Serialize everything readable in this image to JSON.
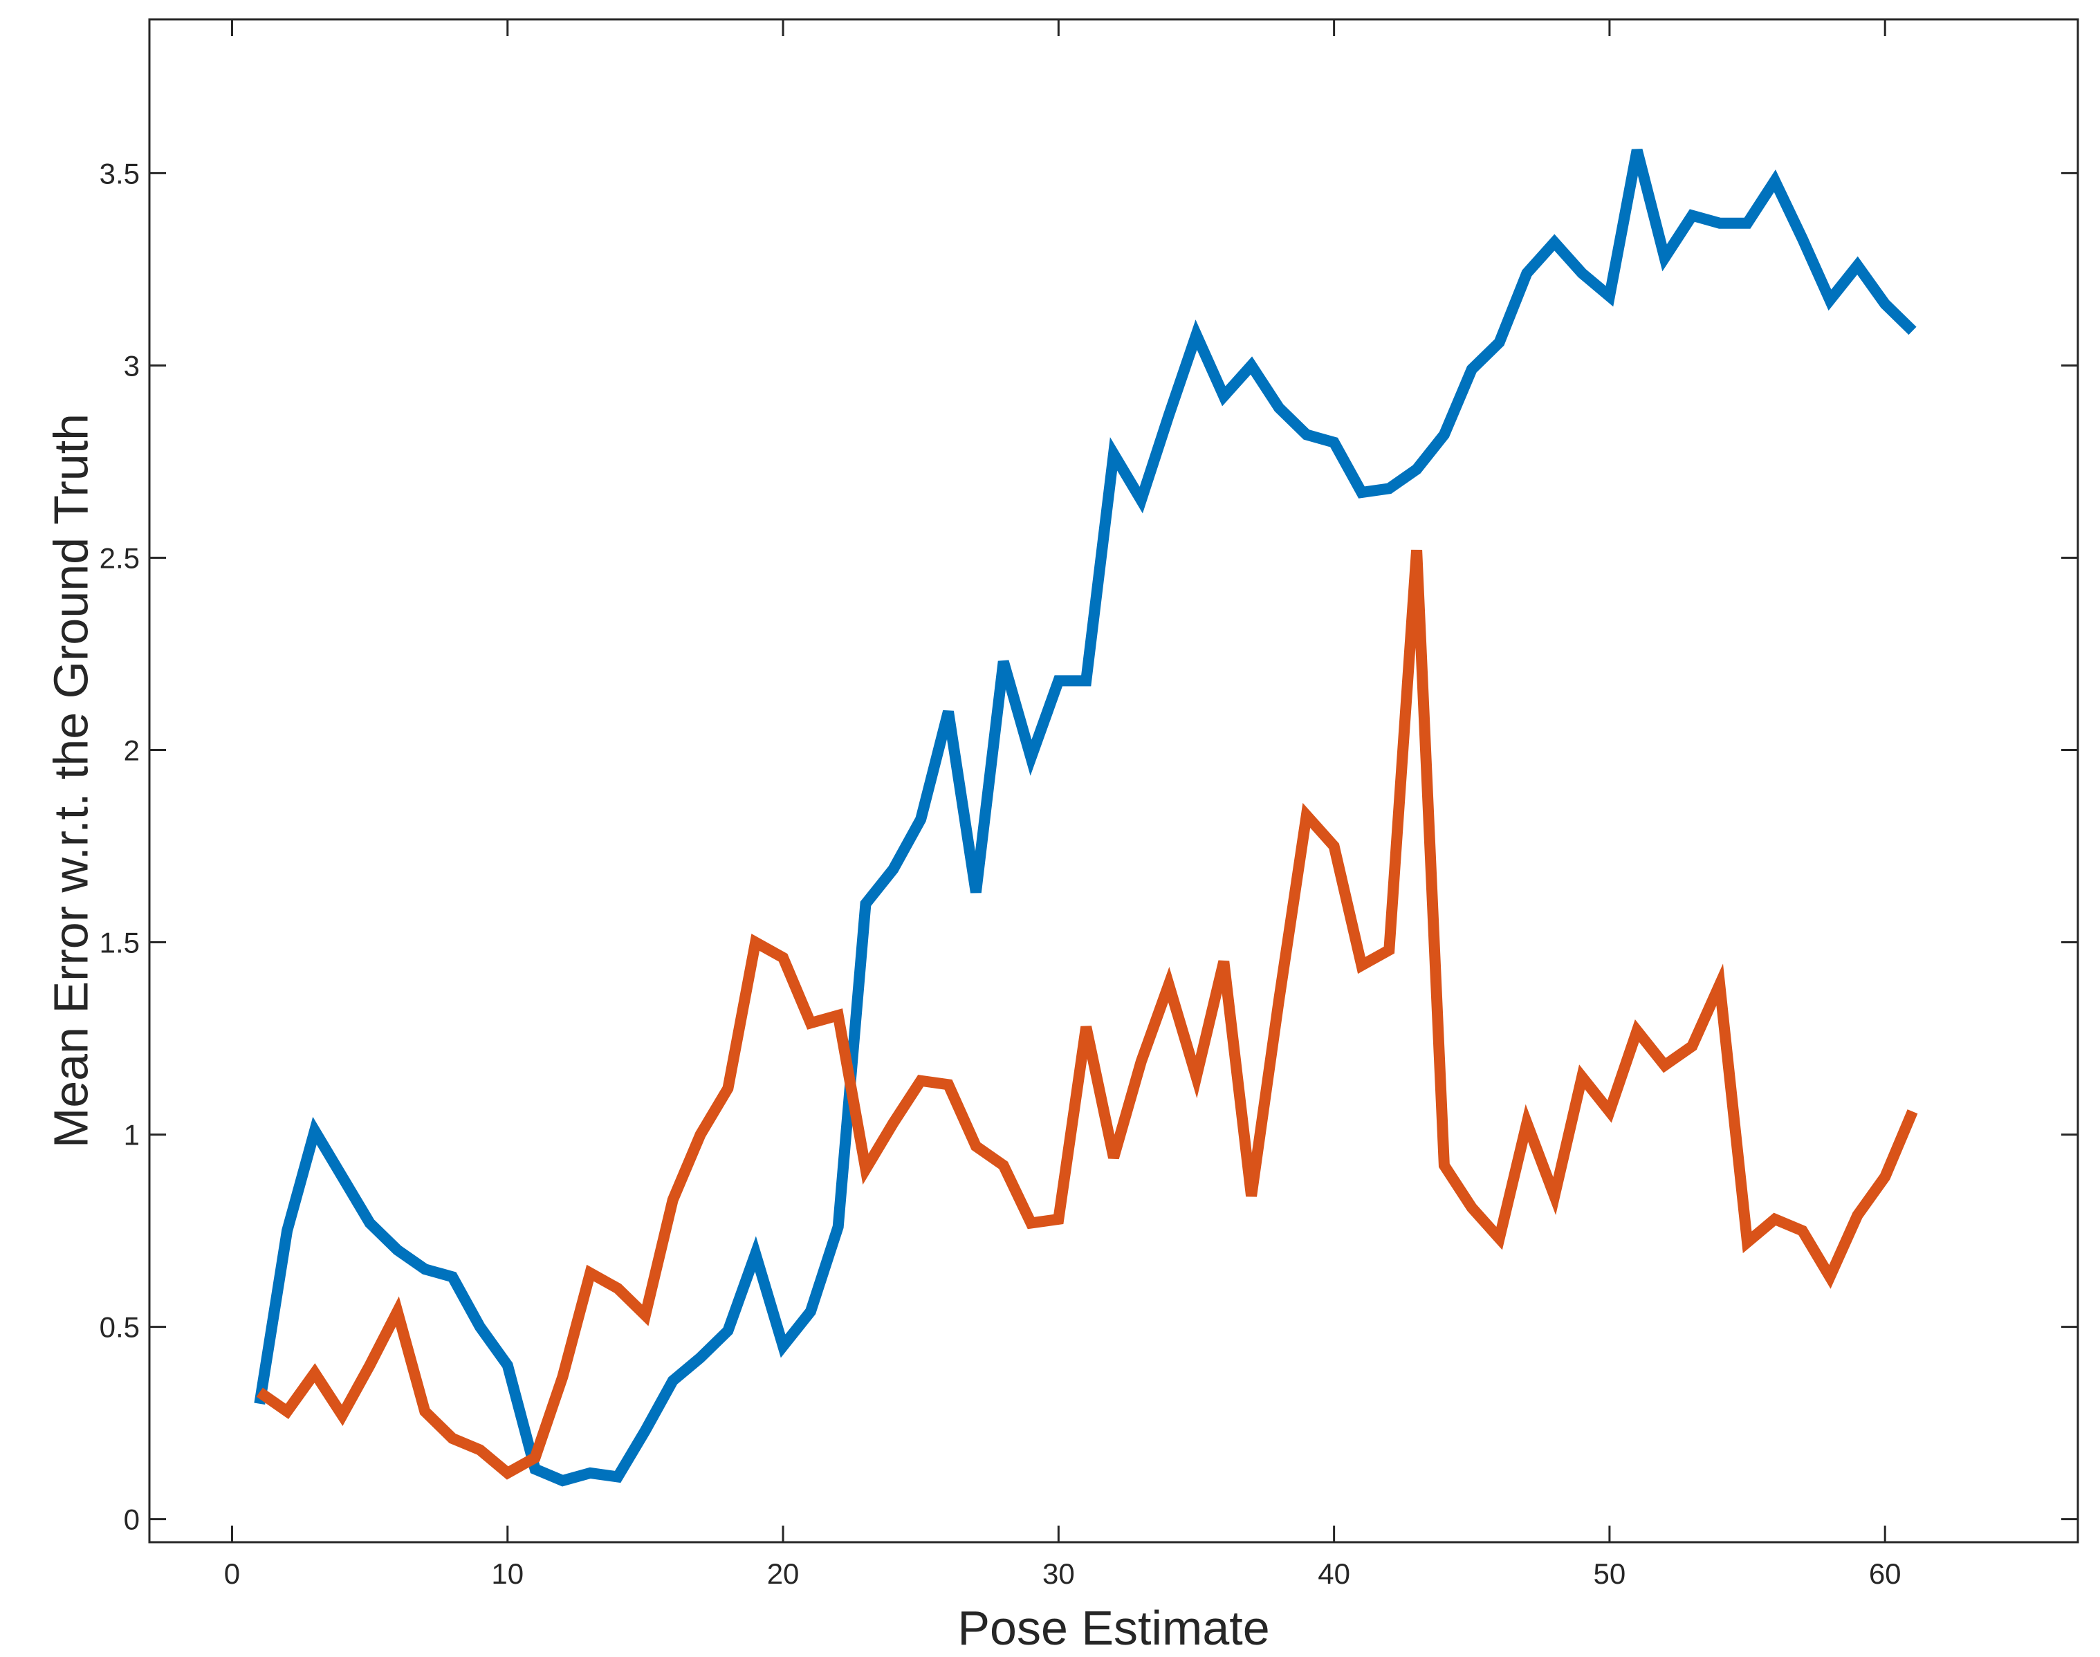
{
  "chart_data": {
    "type": "line",
    "title": "",
    "xlabel": "Pose Estimate",
    "ylabel": "Mean Error w.r.t. the Ground Truth",
    "xlim": [
      -3,
      67
    ],
    "ylim": [
      -0.06,
      3.9
    ],
    "xticks": [
      0,
      10,
      20,
      30,
      40,
      50,
      60
    ],
    "yticks": [
      0,
      0.5,
      1,
      1.5,
      2,
      2.5,
      3,
      3.5
    ],
    "xtick_labels": [
      "0",
      "10",
      "20",
      "30",
      "40",
      "50",
      "60"
    ],
    "ytick_labels": [
      "0",
      "0.5",
      "1",
      "1.5",
      "2",
      "2.5",
      "3",
      "3.5"
    ],
    "grid": false,
    "legend": "none",
    "x": [
      1,
      2,
      3,
      4,
      5,
      6,
      7,
      8,
      9,
      10,
      11,
      12,
      13,
      14,
      15,
      16,
      17,
      18,
      19,
      20,
      21,
      22,
      23,
      24,
      25,
      26,
      27,
      28,
      29,
      30,
      31,
      32,
      33,
      34,
      35,
      36,
      37,
      38,
      39,
      40,
      41,
      42,
      43,
      44,
      45,
      46,
      47,
      48,
      49,
      50,
      51,
      52,
      53,
      54,
      55,
      56,
      57,
      58,
      59,
      60,
      61
    ],
    "series": [
      {
        "color": "#0072BD",
        "values": [
          0.3,
          0.75,
          1.01,
          0.89,
          0.77,
          0.7,
          0.65,
          0.63,
          0.5,
          0.4,
          0.13,
          0.1,
          0.12,
          0.11,
          0.23,
          0.36,
          0.42,
          0.49,
          0.69,
          0.45,
          0.54,
          0.76,
          1.6,
          1.69,
          1.82,
          2.1,
          1.63,
          2.23,
          1.98,
          2.18,
          2.18,
          2.77,
          2.65,
          2.87,
          3.08,
          2.92,
          3.0,
          2.89,
          2.82,
          2.8,
          2.67,
          2.68,
          2.73,
          2.82,
          2.99,
          3.06,
          3.24,
          3.32,
          3.24,
          3.18,
          3.56,
          3.28,
          3.39,
          3.37,
          3.37,
          3.48,
          3.33,
          3.17,
          3.26,
          3.16,
          3.09
        ]
      },
      {
        "color": "#D95319",
        "values": [
          0.33,
          0.28,
          0.38,
          0.27,
          0.4,
          0.54,
          0.28,
          0.21,
          0.18,
          0.12,
          0.16,
          0.37,
          0.64,
          0.6,
          0.53,
          0.83,
          1.0,
          1.12,
          1.5,
          1.46,
          1.29,
          1.31,
          0.91,
          1.03,
          1.14,
          1.13,
          0.97,
          0.92,
          0.77,
          0.78,
          1.28,
          0.94,
          1.19,
          1.39,
          1.15,
          1.45,
          0.84,
          1.35,
          1.83,
          1.75,
          1.44,
          1.48,
          2.52,
          0.92,
          0.81,
          0.73,
          1.03,
          0.84,
          1.15,
          1.06,
          1.27,
          1.18,
          1.23,
          1.39,
          0.72,
          0.78,
          0.75,
          0.63,
          0.79,
          0.89,
          1.06
        ]
      }
    ]
  }
}
